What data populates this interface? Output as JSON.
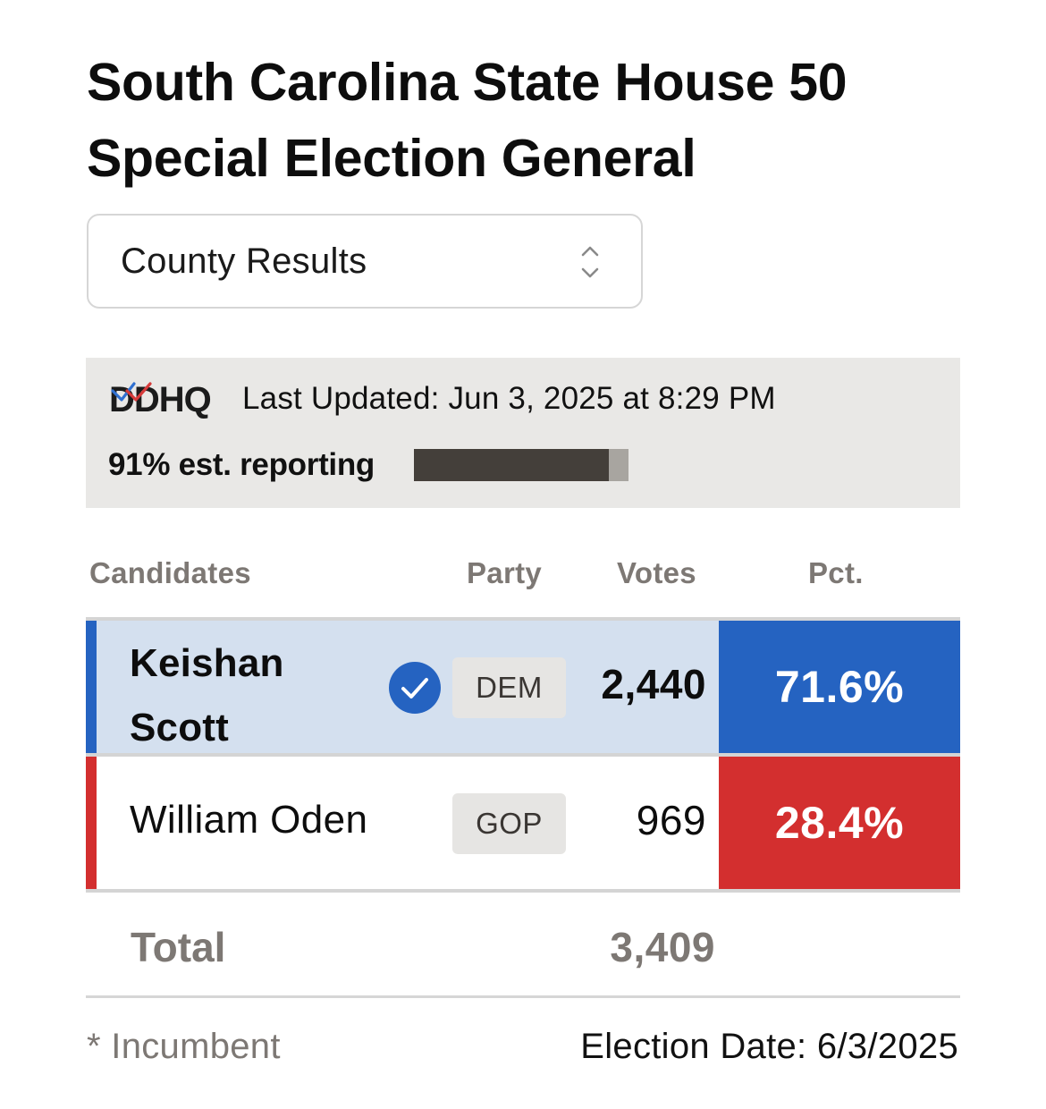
{
  "race": {
    "title_line1": "South Carolina State House 50",
    "title_line2": "Special Election General"
  },
  "view_select": {
    "value": "County Results",
    "icon": "chevron-up-down-icon"
  },
  "status": {
    "logo_text": "DDHQ",
    "last_updated": "Last Updated: Jun 3, 2025 at 8:29 PM",
    "reporting_label": "91% est. reporting",
    "reporting_fraction": 0.91,
    "reporting_fill_color": "#443f3a",
    "reporting_track_color": "#a8a5a0"
  },
  "table": {
    "headers": {
      "candidates": "Candidates",
      "party": "Party",
      "votes": "Votes",
      "pct": "Pct."
    },
    "rows": [
      {
        "name": "Keishan Scott",
        "party": "DEM",
        "votes": "2,440",
        "pct": "71.6%",
        "winner": true,
        "party_color": "#2563c1",
        "row_bg": "#d4e0ef"
      },
      {
        "name": "William Oden",
        "party": "GOP",
        "votes": "969",
        "pct": "28.4%",
        "winner": false,
        "party_color": "#d32f2f",
        "row_bg": "#ffffff"
      }
    ],
    "total_label": "Total",
    "total_votes": "3,409"
  },
  "footer": {
    "incumbent_note": "* Incumbent",
    "election_date": "Election Date: 6/3/2025"
  }
}
